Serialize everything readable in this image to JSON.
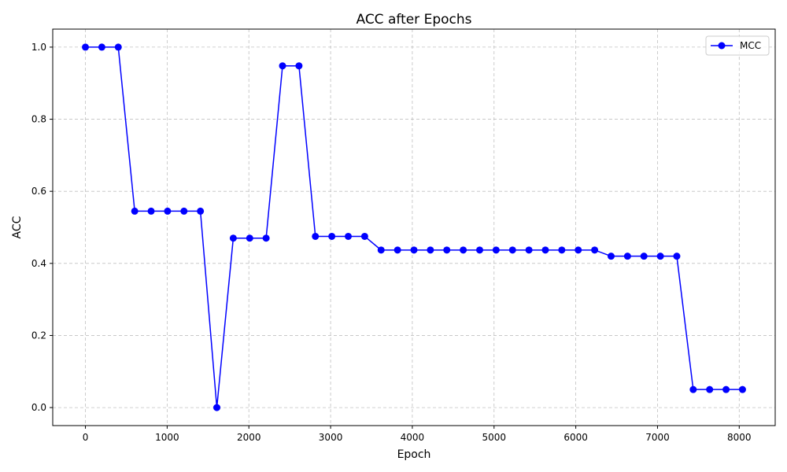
{
  "chart_data": {
    "type": "line",
    "title": "ACC after Epochs",
    "xlabel": "Epoch",
    "ylabel": "ACC",
    "xlim": [
      -400,
      8440
    ],
    "ylim": [
      -0.05,
      1.05
    ],
    "xticks": [
      0,
      1000,
      2000,
      3000,
      4000,
      5000,
      6000,
      7000,
      8000
    ],
    "yticks": [
      0.0,
      0.2,
      0.4,
      0.6,
      0.8,
      1.0
    ],
    "grid": true,
    "legend_position": "top-right",
    "line_color": "#0000ff",
    "series": [
      {
        "name": "MCC",
        "x": [
          0,
          201,
          402,
          603,
          804,
          1005,
          1206,
          1407,
          1608,
          1809,
          2010,
          2211,
          2412,
          2613,
          2814,
          3015,
          3216,
          3417,
          3618,
          3819,
          4020,
          4221,
          4422,
          4623,
          4824,
          5025,
          5226,
          5427,
          5628,
          5829,
          6030,
          6231,
          6432,
          6633,
          6834,
          7035,
          7236,
          7437,
          7638,
          7839,
          8040
        ],
        "y": [
          1.0,
          1.0,
          1.0,
          0.545,
          0.545,
          0.545,
          0.545,
          0.545,
          0.0,
          0.47,
          0.47,
          0.47,
          0.948,
          0.948,
          0.475,
          0.475,
          0.475,
          0.475,
          0.437,
          0.437,
          0.437,
          0.437,
          0.437,
          0.437,
          0.437,
          0.437,
          0.437,
          0.437,
          0.437,
          0.437,
          0.437,
          0.437,
          0.42,
          0.42,
          0.42,
          0.42,
          0.42,
          0.05,
          0.05,
          0.05,
          0.05
        ]
      }
    ]
  }
}
